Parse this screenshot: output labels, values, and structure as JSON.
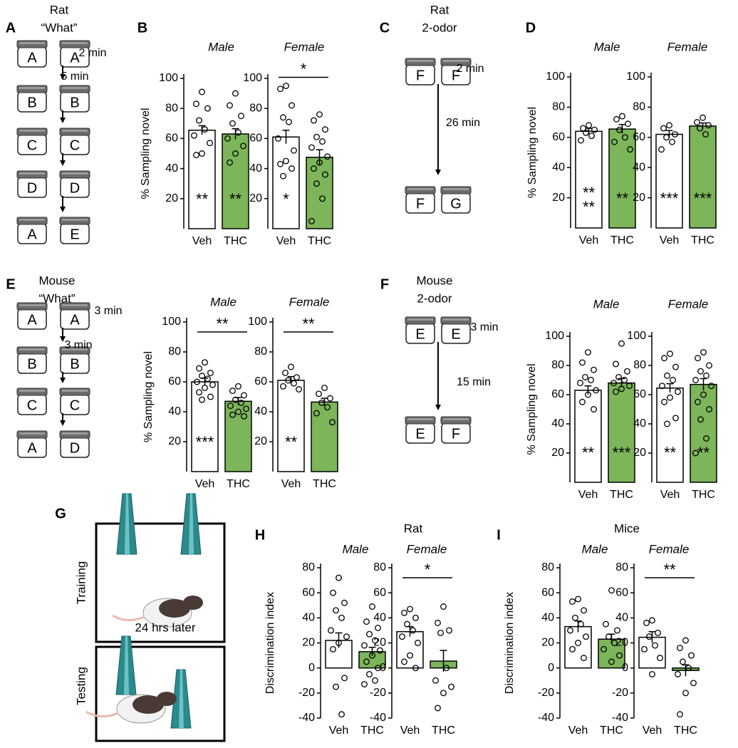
{
  "panel_labels": [
    "A",
    "B",
    "C",
    "D",
    "E",
    "F",
    "G",
    "H",
    "I"
  ],
  "group_titles": [
    "Rat",
    "Mice"
  ],
  "letter_colors": {
    "A": "#2f5597",
    "B": "#8e70b8",
    "C": "#f0882a",
    "D": "#2ea84c",
    "E": "#f0882a",
    "F": "#8e70b8",
    "G": "#444444"
  },
  "odor_tasks": [
    {
      "species": "Rat",
      "paradigm": "“What”",
      "rows": [
        [
          "A",
          "A"
        ],
        [
          "B",
          "B"
        ],
        [
          "C",
          "C"
        ],
        [
          "D",
          "D"
        ],
        [
          "A",
          "E"
        ]
      ],
      "times": [
        "2 min",
        "5 min"
      ]
    },
    {
      "species": "Rat",
      "paradigm": "2-odor",
      "rows": [
        [
          "F",
          "F"
        ],
        [
          "F",
          "G"
        ]
      ],
      "times": [
        "2 min",
        "26 min"
      ]
    },
    {
      "species": "Mouse",
      "paradigm": "“What”",
      "rows": [
        [
          "A",
          "A"
        ],
        [
          "B",
          "B"
        ],
        [
          "C",
          "C"
        ],
        [
          "A",
          "D"
        ]
      ],
      "times": [
        "3 min",
        "3 min"
      ]
    },
    {
      "species": "Mouse",
      "paradigm": "2-odor",
      "rows": [
        [
          "E",
          "E"
        ],
        [
          "E",
          "F"
        ]
      ],
      "times": [
        "3 min",
        "15 min"
      ]
    }
  ],
  "object_task": {
    "phases": [
      "Training",
      "Testing"
    ],
    "delay": "24 hrs later"
  },
  "chart_data": [
    {
      "type": "bar",
      "title": "Male",
      "ylabel": "% Sampling novel",
      "categories": [
        "Veh",
        "THC"
      ],
      "values": [
        65.5,
        63
      ],
      "errors": [
        3,
        3.5
      ],
      "colors": [
        "#ffffff",
        "#7cb55a"
      ],
      "label_colors": [
        "#000000",
        "#ffffff"
      ],
      "points": [
        [
          91,
          83,
          80,
          72,
          66,
          62,
          57,
          50,
          49
        ],
        [
          90,
          82,
          75,
          70,
          64,
          60,
          55,
          50,
          44
        ]
      ],
      "ylim": [
        0,
        100
      ],
      "yticks": [
        20,
        40,
        60,
        80,
        100
      ],
      "bar_labels": [
        [
          "**"
        ],
        [
          "**"
        ]
      ]
    },
    {
      "type": "bar",
      "title": "Female",
      "categories": [
        "Veh",
        "THC"
      ],
      "values": [
        61,
        47.5
      ],
      "errors": [
        4.5,
        5
      ],
      "colors": [
        "#ffffff",
        "#7cb55a"
      ],
      "label_colors": [
        "#000000",
        "#ffffff"
      ],
      "points": [
        [
          95,
          93,
          82,
          74,
          71,
          60,
          52,
          45,
          43,
          40,
          35
        ],
        [
          76,
          72,
          66,
          61,
          58,
          54,
          48,
          44,
          40,
          36,
          30,
          20,
          5
        ]
      ],
      "ylim": [
        0,
        100
      ],
      "yticks": [
        20,
        40,
        60,
        80,
        100
      ],
      "bar_labels": [
        [
          "*"
        ],
        null
      ],
      "significance": "*"
    },
    {
      "type": "bar",
      "title": "Male",
      "ylabel": "% Sampling novel",
      "categories": [
        "Veh",
        "THC"
      ],
      "values": [
        64,
        65.5
      ],
      "errors": [
        2,
        3
      ],
      "colors": [
        "#ffffff",
        "#7cb55a"
      ],
      "label_colors": [
        "#000000",
        "#ffffff"
      ],
      "points": [
        [
          68,
          66,
          65,
          63,
          61,
          58
        ],
        [
          74,
          72,
          69,
          65,
          60,
          57,
          52
        ]
      ],
      "ylim": [
        0,
        100
      ],
      "yticks": [
        20,
        40,
        60,
        80,
        100
      ],
      "bar_labels": [
        [
          "**",
          "**"
        ],
        [
          "**"
        ]
      ]
    },
    {
      "type": "bar",
      "title": "Female",
      "categories": [
        "Veh",
        "THC"
      ],
      "values": [
        62,
        67.5
      ],
      "errors": [
        2.5,
        2
      ],
      "colors": [
        "#ffffff",
        "#7cb55a"
      ],
      "label_colors": [
        "#000000",
        "#ffffff"
      ],
      "points": [
        [
          68,
          66,
          62,
          60,
          57,
          52
        ],
        [
          73,
          70,
          68,
          66,
          62
        ]
      ],
      "ylim": [
        0,
        100
      ],
      "yticks": [
        20,
        40,
        60,
        80,
        100
      ],
      "bar_labels": [
        [
          "***"
        ],
        [
          "***"
        ]
      ]
    },
    {
      "type": "bar",
      "title": "Male",
      "ylabel": "% Sampling novel",
      "categories": [
        "Veh",
        "THC"
      ],
      "values": [
        60,
        47
      ],
      "errors": [
        2.5,
        2.5
      ],
      "colors": [
        "#ffffff",
        "#7cb55a"
      ],
      "label_colors": [
        "#000000",
        "#ffffff"
      ],
      "points": [
        [
          73,
          69,
          66,
          64,
          62,
          60,
          58,
          56,
          53,
          50,
          48
        ],
        [
          57,
          54,
          51,
          48,
          46,
          44,
          42,
          40,
          38,
          37
        ]
      ],
      "ylim": [
        0,
        100
      ],
      "yticks": [
        20,
        40,
        60,
        80,
        100
      ],
      "bar_labels": [
        [
          "***"
        ],
        null
      ],
      "significance": "**"
    },
    {
      "type": "bar",
      "title": "Female",
      "categories": [
        "Veh",
        "THC"
      ],
      "values": [
        61,
        46.5
      ],
      "errors": [
        2.5,
        2.5
      ],
      "colors": [
        "#ffffff",
        "#7cb55a"
      ],
      "label_colors": [
        "#000000",
        "#ffffff"
      ],
      "points": [
        [
          70,
          66,
          63,
          61,
          59,
          57,
          55
        ],
        [
          56,
          52,
          49,
          46,
          43,
          39,
          33
        ]
      ],
      "ylim": [
        0,
        100
      ],
      "yticks": [
        20,
        40,
        60,
        80,
        100
      ],
      "bar_labels": [
        [
          "**"
        ],
        null
      ],
      "significance": "**"
    },
    {
      "type": "bar",
      "title": "Male",
      "ylabel": "% Sampling novel",
      "categories": [
        "Veh",
        "THC"
      ],
      "values": [
        63,
        68
      ],
      "errors": [
        3,
        3
      ],
      "colors": [
        "#ffffff",
        "#7cb55a"
      ],
      "label_colors": [
        "#000000",
        "#ffffff"
      ],
      "points": [
        [
          89,
          82,
          77,
          72,
          70,
          68,
          63,
          60,
          55,
          50
        ],
        [
          95,
          81,
          76,
          72,
          70,
          68,
          66,
          64,
          62
        ]
      ],
      "ylim": [
        0,
        100
      ],
      "yticks": [
        20,
        40,
        60,
        80,
        100
      ],
      "bar_labels": [
        [
          "**"
        ],
        [
          "***"
        ]
      ]
    },
    {
      "type": "bar",
      "title": "Female",
      "categories": [
        "Veh",
        "THC"
      ],
      "values": [
        64.5,
        67
      ],
      "errors": [
        3,
        4
      ],
      "colors": [
        "#ffffff",
        "#7cb55a"
      ],
      "label_colors": [
        "#000000",
        "#ffffff"
      ],
      "points": [
        [
          88,
          85,
          79,
          73,
          70,
          66,
          62,
          58,
          55,
          44,
          40
        ],
        [
          89,
          85,
          80,
          76,
          73,
          70,
          66,
          60,
          55,
          50,
          43,
          30,
          20
        ]
      ],
      "ylim": [
        0,
        100
      ],
      "yticks": [
        20,
        40,
        60,
        80,
        100
      ],
      "bar_labels": [
        [
          "**"
        ],
        [
          "**"
        ]
      ]
    },
    {
      "type": "bar",
      "title": "Male",
      "ylabel": "Discrimination index",
      "categories": [
        "Veh",
        "THC"
      ],
      "values": [
        22,
        13
      ],
      "errors": [
        6,
        3.5
      ],
      "colors": [
        "#ffffff",
        "#7cb55a"
      ],
      "label_colors": [
        "#000000",
        "#ffffff"
      ],
      "points": [
        [
          72,
          60,
          52,
          46,
          40,
          30,
          25,
          20,
          15,
          -8,
          -15,
          -37
        ],
        [
          49,
          37,
          32,
          27,
          22,
          18,
          14,
          10,
          5,
          0,
          -5,
          -10,
          -13
        ]
      ],
      "ylim": [
        -40,
        80
      ],
      "yticks": [
        -40,
        -20,
        0,
        20,
        40,
        60,
        80
      ],
      "bar_labels": [
        null,
        null
      ]
    },
    {
      "type": "bar",
      "title": "Female",
      "categories": [
        "Veh",
        "THC"
      ],
      "values": [
        29,
        5.5
      ],
      "errors": [
        4,
        8.5
      ],
      "colors": [
        "#ffffff",
        "#7cb55a"
      ],
      "label_colors": [
        "#000000",
        "#ffffff"
      ],
      "points": [
        [
          47,
          44,
          40,
          35,
          30,
          25,
          20,
          10,
          5,
          0
        ],
        [
          49,
          36,
          30,
          28,
          0,
          -10,
          -15,
          -20,
          -32
        ]
      ],
      "ylim": [
        -40,
        80
      ],
      "yticks": [
        -40,
        -20,
        0,
        20,
        40,
        60,
        80
      ],
      "bar_labels": [
        null,
        null
      ],
      "significance": "*"
    },
    {
      "type": "bar",
      "title": "Male",
      "ylabel": "Discrimination index",
      "categories": [
        "Veh",
        "THC"
      ],
      "values": [
        33,
        23
      ],
      "errors": [
        4.5,
        4
      ],
      "colors": [
        "#ffffff",
        "#7cb55a"
      ],
      "label_colors": [
        "#000000",
        "#ffffff"
      ],
      "points": [
        [
          55,
          53,
          46,
          40,
          35,
          30,
          25,
          20,
          15,
          8
        ],
        [
          62,
          35,
          30,
          25,
          20,
          15,
          10,
          5
        ]
      ],
      "ylim": [
        -40,
        80
      ],
      "yticks": [
        -40,
        -20,
        0,
        20,
        40,
        60,
        80
      ],
      "bar_labels": [
        null,
        null
      ]
    },
    {
      "type": "bar",
      "title": "Female",
      "categories": [
        "Veh",
        "THC"
      ],
      "values": [
        24.5,
        -2
      ],
      "errors": [
        4.5,
        4.5
      ],
      "colors": [
        "#ffffff",
        "#7cb55a"
      ],
      "label_colors": [
        "#000000",
        "#ffffff"
      ],
      "points": [
        [
          38,
          36,
          28,
          25,
          18,
          15,
          8,
          -5
        ],
        [
          22,
          16,
          10,
          5,
          0,
          -5,
          -12,
          -20,
          -37
        ]
      ],
      "ylim": [
        -40,
        80
      ],
      "yticks": [
        -40,
        -20,
        0,
        20,
        40,
        60,
        80
      ],
      "bar_labels": [
        null,
        null
      ],
      "significance": "**"
    }
  ]
}
